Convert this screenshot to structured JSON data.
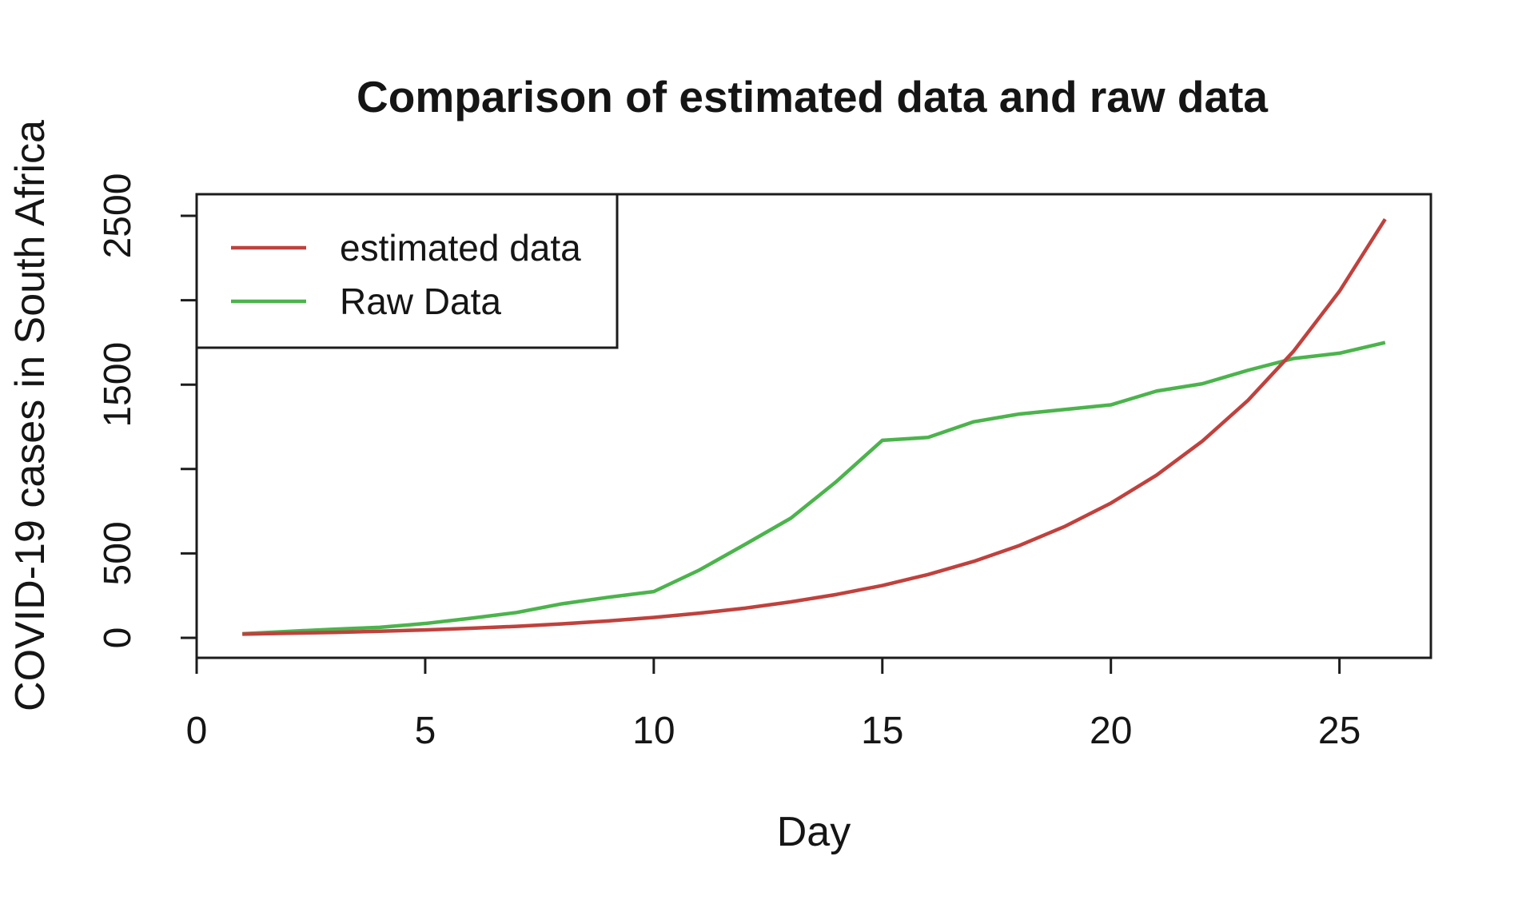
{
  "chart_data": {
    "type": "line",
    "title": "Comparison of estimated data and raw data",
    "xlabel": "Day",
    "ylabel": "COVID-19 cases in South Africa",
    "xlim": [
      0,
      27
    ],
    "ylim": [
      -115,
      2630
    ],
    "grid": false,
    "legend_position": "topleft",
    "x_ticks": [
      0,
      5,
      10,
      15,
      20,
      25
    ],
    "y_ticks": [
      0,
      500,
      1000,
      1500,
      2000,
      2500
    ],
    "y_tick_labels": [
      "0",
      "500",
      "",
      "1500",
      "",
      "2500"
    ],
    "x": [
      1,
      2,
      3,
      4,
      5,
      6,
      7,
      8,
      9,
      10,
      11,
      12,
      13,
      14,
      15,
      16,
      17,
      18,
      19,
      20,
      21,
      22,
      23,
      24,
      25,
      26
    ],
    "series": [
      {
        "name": "estimated data",
        "color": "#c0413d",
        "values": [
          22,
          27,
          32,
          39,
          47,
          57,
          68,
          83,
          100,
          121,
          146,
          176,
          213,
          257,
          310,
          375,
          453,
          547,
          661,
          798,
          964,
          1165,
          1407,
          1699,
          2053,
          2480
        ]
      },
      {
        "name": "Raw Data",
        "color": "#4bb44c",
        "values": [
          24,
          38,
          51,
          62,
          85,
          116,
          150,
          202,
          240,
          274,
          402,
          554,
          709,
          927,
          1170,
          1187,
          1280,
          1326,
          1353,
          1380,
          1462,
          1505,
          1585,
          1655,
          1686,
          1749
        ]
      }
    ]
  }
}
